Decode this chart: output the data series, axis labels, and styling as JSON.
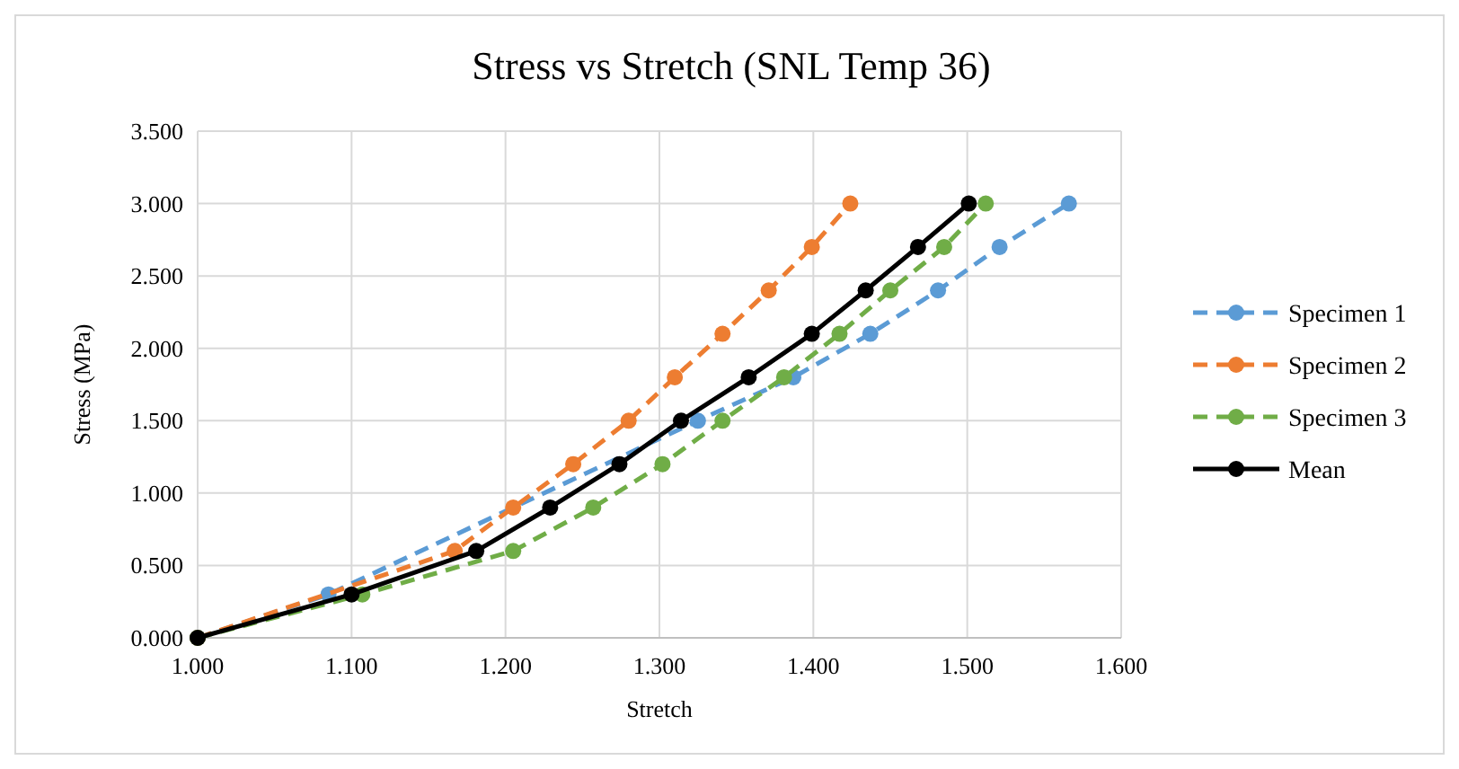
{
  "chart_data": {
    "type": "line",
    "title": "Stress vs Stretch (SNL Temp 36)",
    "xlabel": "Stretch",
    "ylabel": "Stress (MPa)",
    "xlim": [
      1,
      1.6
    ],
    "xticks": [
      {
        "value": 1,
        "label": "1.000"
      },
      {
        "value": 1.1,
        "label": "1.100"
      },
      {
        "value": 1.2,
        "label": "1.200"
      },
      {
        "value": 1.3,
        "label": "1.300"
      },
      {
        "value": 1.4,
        "label": "1.400"
      },
      {
        "value": 1.5,
        "label": "1.500"
      },
      {
        "value": 1.6,
        "label": "1.600"
      }
    ],
    "ylim": [
      0,
      3.5
    ],
    "yticks": [
      {
        "value": 0,
        "label": "0.000"
      },
      {
        "value": 0.5,
        "label": "0.500"
      },
      {
        "value": 1,
        "label": "1.000"
      },
      {
        "value": 1.5,
        "label": "1.500"
      },
      {
        "value": 2,
        "label": "2.000"
      },
      {
        "value": 2.5,
        "label": "2.500"
      },
      {
        "value": 3,
        "label": "3.000"
      },
      {
        "value": 3.5,
        "label": "3.500"
      }
    ],
    "grid": true,
    "legend": "right",
    "marker": "circle",
    "series": [
      {
        "name": "Specimen 1",
        "color": "#5b9bd5",
        "line_style": "dashed",
        "x": [
          1,
          1.085,
          1.18,
          1.23,
          1.275,
          1.325,
          1.387,
          1.437,
          1.481,
          1.521,
          1.566
        ],
        "values": [
          0,
          0.3,
          null,
          null,
          null,
          1.5,
          1.8,
          2.1,
          2.4,
          2.7,
          3.0
        ]
      },
      {
        "name": "Specimen 2",
        "color": "#ed7d31",
        "line_style": "dashed",
        "x": [
          1,
          1.095,
          1.167,
          1.205,
          1.244,
          1.28,
          1.31,
          1.341,
          1.371,
          1.399,
          1.424
        ],
        "values": [
          0,
          null,
          0.6,
          0.9,
          1.2,
          1.5,
          1.8,
          2.1,
          2.4,
          2.7,
          3.0
        ]
      },
      {
        "name": "Specimen 3",
        "color": "#70ad47",
        "line_style": "dashed",
        "x": [
          1,
          1.107,
          1.205,
          1.257,
          1.302,
          1.341,
          1.381,
          1.417,
          1.45,
          1.485,
          1.512
        ],
        "values": [
          0,
          0.3,
          0.6,
          0.9,
          1.2,
          1.5,
          1.8,
          2.1,
          2.4,
          2.7,
          3.0
        ]
      },
      {
        "name": "Mean",
        "color": "#000000",
        "line_style": "solid",
        "x": [
          1,
          1.1,
          1.181,
          1.229,
          1.274,
          1.314,
          1.358,
          1.399,
          1.434,
          1.468,
          1.501
        ],
        "values": [
          0,
          0.3,
          0.6,
          0.9,
          1.2,
          1.5,
          1.8,
          2.1,
          2.4,
          2.7,
          3.0
        ]
      }
    ]
  }
}
